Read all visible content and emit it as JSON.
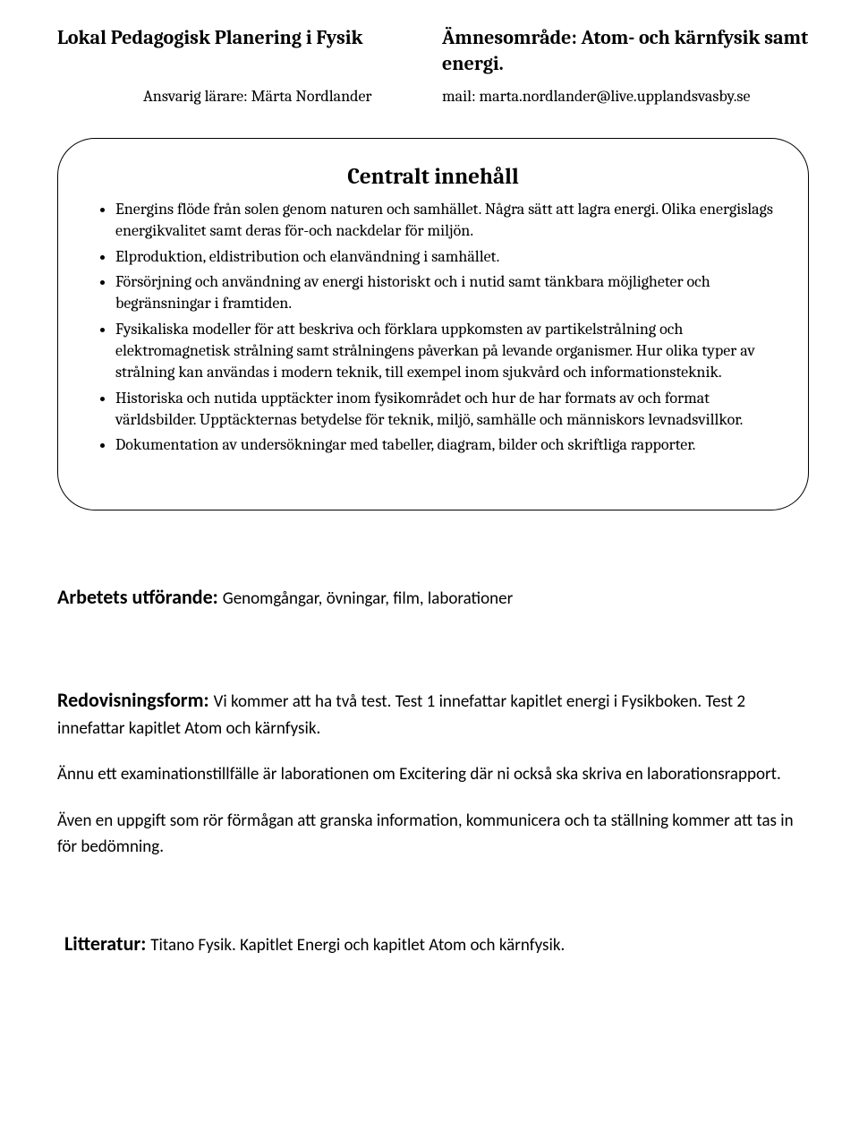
{
  "header": {
    "left_title": "Lokal Pedagogisk Planering i Fysik",
    "right_title": "Ämnesområde: Atom- och kärnfysik samt energi.",
    "teacher_label": "Ansvarig lärare: Märta Nordlander",
    "mail_label": "mail: marta.nordlander@live.upplandsvasby.se"
  },
  "box": {
    "title": "Centralt innehåll",
    "items": [
      "Energins flöde från solen genom naturen och samhället. Några sätt att lagra energi. Olika energislags energikvalitet samt deras för-och nackdelar för miljön.",
      "Elproduktion, eldistribution och elanvändning i samhället.",
      "Försörjning och användning av energi historiskt och i nutid samt tänkbara möjligheter och begränsningar i framtiden.",
      "Fysikaliska modeller för att beskriva och förklara uppkomsten av partikelstrålning och elektromagnetisk strålning samt strålningens påverkan på levande organismer. Hur olika typer av strålning kan användas i modern teknik, till exempel inom sjukvård och informationsteknik.",
      "Historiska och nutida upptäckter inom fysikområdet och hur de har formats av och format världsbilder. Upptäckternas betydelse för teknik, miljö, samhälle och människors levnadsvillkor.",
      "Dokumentation av undersökningar med tabeller, diagram, bilder och skriftliga rapporter."
    ]
  },
  "arbete": {
    "title": "Arbetets utförande: ",
    "body": "Genomgångar, övningar, film, laborationer"
  },
  "redovisning": {
    "title": "Redovisningsform: ",
    "body": "Vi kommer att ha två test. Test 1 innefattar kapitlet energi i Fysikboken. Test 2 innefattar kapitlet Atom och kärnfysik.",
    "p2": "Ännu ett examinationstillfälle är laborationen om Excitering där ni också ska skriva en laborationsrapport.",
    "p3": "Även en uppgift som rör förmågan att granska information, kommunicera och ta ställning kommer att tas in för bedömning."
  },
  "litteratur": {
    "title": "Litteratur: ",
    "body": "Titano Fysik. Kapitlet Energi och kapitlet Atom och kärnfysik."
  },
  "colors": {
    "text": "#000000",
    "background": "#ffffff",
    "border": "#000000"
  },
  "fonts": {
    "serif": "Cambria",
    "sans": "Calibri",
    "title_size_pt": 17,
    "body_size_pt": 14
  }
}
